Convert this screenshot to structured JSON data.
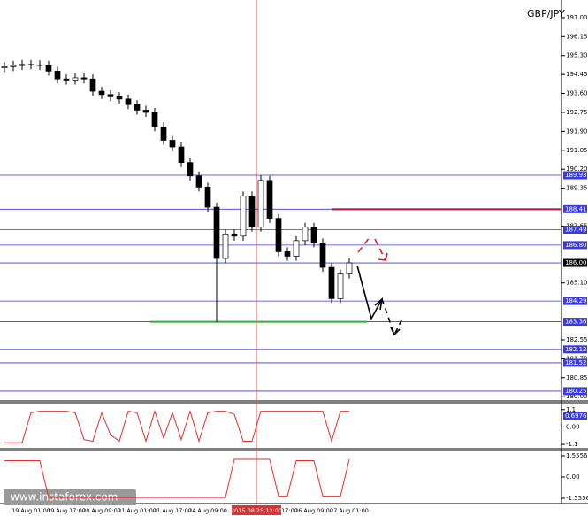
{
  "watermark": "www.instaforex.com",
  "cursor_label": "2015.08.25 12:00",
  "chart_data": [
    {
      "type": "candlestick",
      "title": "GBP/JPY",
      "categories": [
        null,
        null,
        null,
        "19 Aug 01:00",
        null,
        null,
        null,
        "19 Aug 17:00",
        null,
        null,
        null,
        "20 Aug 09:00",
        null,
        null,
        null,
        "21 Aug 01:00",
        null,
        null,
        null,
        "21 Aug 17:00",
        null,
        null,
        null,
        "24 Aug 09:00",
        null,
        null,
        null,
        null,
        null,
        null,
        null,
        "25 Aug 17:00",
        null,
        null,
        null,
        "26 Aug 09:00",
        null,
        null,
        null,
        "27 Aug 01:00"
      ],
      "open": [
        194.75,
        194.8,
        194.85,
        194.9,
        194.88,
        194.85,
        194.6,
        194.25,
        194.2,
        194.3,
        194.25,
        193.7,
        193.55,
        193.45,
        193.35,
        193.1,
        192.85,
        192.75,
        192.1,
        191.5,
        191.2,
        190.5,
        189.9,
        189.4,
        188.5,
        186.2,
        187.3,
        187.2,
        189.0,
        187.6,
        189.7,
        188.0,
        186.5,
        186.3,
        187.0,
        187.6,
        186.9,
        185.8,
        184.4,
        185.5
      ],
      "high": [
        195.0,
        195.05,
        195.1,
        195.1,
        195.08,
        195.05,
        194.8,
        194.45,
        194.5,
        194.5,
        194.45,
        193.9,
        193.75,
        193.65,
        193.55,
        193.3,
        193.05,
        192.95,
        192.3,
        191.7,
        191.4,
        190.7,
        190.1,
        189.6,
        188.7,
        187.5,
        187.5,
        189.2,
        189.2,
        189.93,
        189.9,
        188.2,
        186.7,
        187.2,
        187.8,
        187.8,
        187.1,
        186.0,
        185.7,
        186.2
      ],
      "low": [
        194.55,
        194.6,
        194.65,
        194.68,
        194.65,
        194.4,
        194.05,
        194.0,
        194.0,
        194.05,
        193.5,
        193.35,
        193.25,
        193.15,
        192.9,
        192.65,
        192.55,
        191.9,
        191.3,
        191.0,
        190.3,
        189.7,
        189.2,
        188.3,
        183.36,
        186.0,
        187.0,
        187.0,
        187.4,
        187.4,
        187.8,
        186.3,
        186.1,
        186.1,
        186.8,
        186.7,
        185.6,
        184.2,
        184.2,
        185.3
      ],
      "close": [
        194.8,
        194.85,
        194.9,
        194.88,
        194.85,
        194.6,
        194.25,
        194.2,
        194.3,
        194.25,
        193.7,
        193.55,
        193.45,
        193.35,
        193.1,
        192.85,
        192.75,
        192.1,
        191.5,
        191.2,
        190.5,
        189.9,
        189.4,
        188.5,
        186.2,
        187.3,
        187.2,
        189.0,
        187.6,
        189.7,
        188.0,
        186.5,
        186.3,
        187.0,
        187.6,
        186.9,
        185.8,
        184.4,
        185.5,
        186.0
      ],
      "up_color": "#ffffff",
      "down_color": "#000000",
      "ylim": [
        179.85,
        197.79
      ],
      "yticks": [
        {
          "value": 197,
          "label": "197.00"
        },
        {
          "value": 196.15,
          "label": "196.15"
        },
        {
          "value": 195.3,
          "label": "195.30"
        },
        {
          "value": 194.45,
          "label": "194.45"
        },
        {
          "value": 193.6,
          "label": "193.60"
        },
        {
          "value": 192.75,
          "label": "192.75"
        },
        {
          "value": 191.9,
          "label": "191.90"
        },
        {
          "value": 191.05,
          "label": "191.05"
        },
        {
          "value": 190.2,
          "label": "190.20"
        },
        {
          "value": 189.35,
          "label": "189.35"
        },
        {
          "value": 187.65,
          "label": "187.65"
        },
        {
          "value": 185.1,
          "label": "185.10"
        },
        {
          "value": 182.55,
          "label": "182.55"
        },
        {
          "value": 181.7,
          "label": "181.70"
        },
        {
          "value": 180.85,
          "label": "180.85"
        },
        {
          "value": 180,
          "label": "180.00"
        }
      ],
      "levels": [
        189.93,
        188.41,
        187.49,
        186.8,
        186,
        184.29,
        183.36,
        182.12,
        181.52,
        180.25
      ],
      "level_labels": [
        "189.93",
        "188.41",
        "187.49",
        "186.80",
        "186.00",
        "184.29",
        "183.36",
        "182.12",
        "181.52",
        "180.25"
      ],
      "level_color": "#3a3ae0",
      "resistance_color": "#b0103a",
      "support_color": "#30b030"
    },
    {
      "type": "line",
      "color": "#e03030",
      "values": [
        -1,
        -1,
        -1,
        0.9,
        1,
        1,
        1,
        1,
        0.9,
        -0.8,
        -0.9,
        0.9,
        -0.5,
        -0.9,
        1,
        0.9,
        -0.9,
        1,
        -0.7,
        0.9,
        -0.8,
        1,
        -0.9,
        0.9,
        1,
        1,
        0.8,
        -0.9,
        -0.9,
        1,
        1,
        1,
        1,
        1,
        1,
        1,
        1,
        -0.9,
        1,
        1
      ],
      "ylim": [
        -1.32,
        1.48
      ],
      "yticks": [
        1.1,
        {
          "value": 0,
          "label": "0.00"
        },
        -1.1
      ],
      "level": 0.6976
    },
    {
      "type": "line",
      "color": "#e03030",
      "values": [
        1.2,
        1.2,
        1.2,
        1.2,
        1.2,
        -1.5,
        -1.5,
        -1.5,
        -1.5,
        -1.5,
        -1.5,
        -1.5,
        -1.5,
        -1.5,
        -1.5,
        -1.5,
        -1.5,
        -1.5,
        -1.5,
        -1.5,
        -1.5,
        -1.5,
        -1.5,
        -1.5,
        -1.5,
        -1.5,
        1.3,
        1.3,
        1.3,
        1.3,
        1.3,
        -1.4,
        -1.4,
        1.2,
        1.2,
        1.2,
        -1.4,
        -1.4,
        -1.4,
        1.3
      ],
      "ylim": [
        -1.88,
        1.88
      ],
      "yticks": [
        1.5556,
        {
          "value": 0,
          "label": "0.00"
        },
        -1.5556
      ]
    }
  ]
}
